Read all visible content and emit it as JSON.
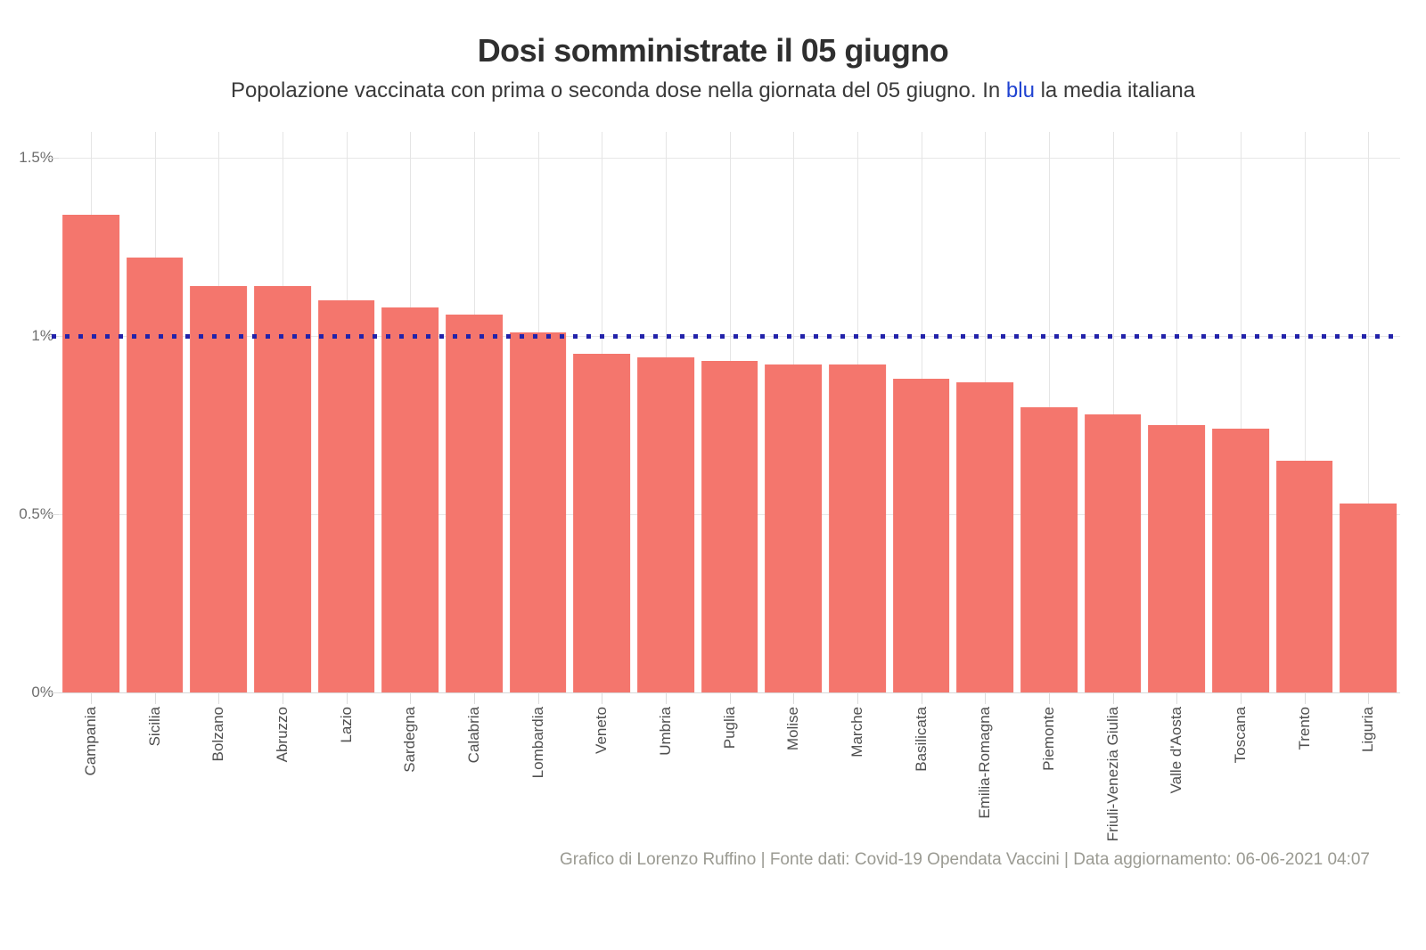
{
  "header": {
    "title": "Dosi somministrate il 05 giugno",
    "subtitle_prefix": "Popolazione vaccinata con prima o seconda dose nella giornata del 05 giugno. In ",
    "subtitle_highlight": "blu",
    "subtitle_suffix": " la media italiana"
  },
  "chart_data": {
    "type": "bar",
    "title": "Dosi somministrate il 05 giugno",
    "subtitle": "Popolazione vaccinata con prima o seconda dose nella giornata del 05 giugno. In blu la media italiana",
    "categories": [
      "Campania",
      "Sicilia",
      "Bolzano",
      "Abruzzo",
      "Lazio",
      "Sardegna",
      "Calabria",
      "Lombardia",
      "Veneto",
      "Umbria",
      "Puglia",
      "Molise",
      "Marche",
      "Basilicata",
      "Emilia-Romagna",
      "Piemonte",
      "Friuli-Venezia Giulia",
      "Valle d'Aosta",
      "Toscana",
      "Trento",
      "Liguria"
    ],
    "values": [
      1.34,
      1.22,
      1.14,
      1.14,
      1.1,
      1.08,
      1.06,
      1.01,
      0.95,
      0.94,
      0.93,
      0.92,
      0.92,
      0.88,
      0.87,
      0.8,
      0.78,
      0.75,
      0.74,
      0.65,
      0.53
    ],
    "unit": "%",
    "xlabel": "",
    "ylabel": "",
    "ylim": [
      0,
      1.5725
    ],
    "y_ticks": [
      {
        "label": "1.5%",
        "value": 1.5
      },
      {
        "label": "1%",
        "value": 1.0
      },
      {
        "label": "0.5%",
        "value": 0.5
      },
      {
        "label": "0%",
        "value": 0.0
      }
    ],
    "average_line": {
      "value": 1.0,
      "meaning": "media italiana",
      "color": "#2222aa",
      "style": "dotted"
    },
    "bar_color": "#f4766d",
    "grid": true,
    "legend_position": "none"
  },
  "footer": {
    "credit": "Grafico di Lorenzo Ruffino | Fonte dati: Covid-19 Opendata Vaccini | Data aggiornamento: 06-06-2021 04:07"
  },
  "colors": {
    "bar": "#f4766d",
    "average_line_blue": "#2222aa",
    "subtitle_highlight_blue": "#2043d1",
    "title_text": "#2f2f2f",
    "axis_text": "#6e6e6e",
    "footer_text": "#9a9a92"
  }
}
